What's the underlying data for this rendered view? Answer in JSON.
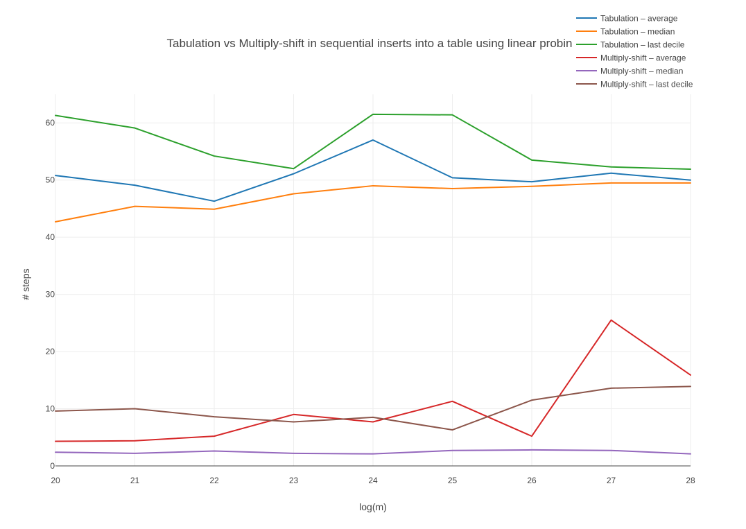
{
  "chart_data": {
    "type": "line",
    "title": "Tabulation vs Multiply-shift in sequential inserts into a table using linear probin",
    "xlabel": "log(m)",
    "ylabel": "# steps",
    "x": [
      20,
      21,
      22,
      23,
      24,
      25,
      26,
      27,
      28
    ],
    "xlim": [
      20,
      28
    ],
    "ylim": [
      0,
      65
    ],
    "xticks": [
      "20",
      "21",
      "22",
      "23",
      "24",
      "25",
      "26",
      "27",
      "28"
    ],
    "yticks": [
      "0",
      "10",
      "20",
      "30",
      "40",
      "50",
      "60"
    ],
    "grid": true,
    "legend_position": "top-right",
    "series": [
      {
        "name": "Tabulation – average",
        "color": "#1f77b4",
        "values": [
          50.8,
          49.1,
          46.3,
          51.1,
          57.0,
          50.4,
          49.7,
          51.2,
          50.0
        ]
      },
      {
        "name": "Tabulation – median",
        "color": "#ff7f0e",
        "values": [
          42.7,
          45.4,
          44.9,
          47.6,
          49.0,
          48.5,
          48.9,
          49.5,
          49.5
        ]
      },
      {
        "name": "Tabulation – last decile",
        "color": "#2ca02c",
        "values": [
          61.3,
          59.1,
          54.2,
          52.0,
          61.5,
          61.4,
          53.5,
          52.3,
          51.9
        ]
      },
      {
        "name": "Multiply-shift – average",
        "color": "#d62728",
        "values": [
          4.3,
          4.4,
          5.2,
          9.0,
          7.7,
          11.3,
          5.2,
          25.5,
          15.9
        ]
      },
      {
        "name": "Multiply-shift – median",
        "color": "#9467bd",
        "values": [
          2.4,
          2.2,
          2.6,
          2.2,
          2.1,
          2.7,
          2.8,
          2.7,
          2.1
        ]
      },
      {
        "name": "Multiply-shift – last decile",
        "color": "#8c564b",
        "values": [
          9.6,
          10.0,
          8.6,
          7.7,
          8.5,
          6.3,
          11.5,
          13.6,
          13.9
        ]
      }
    ]
  }
}
